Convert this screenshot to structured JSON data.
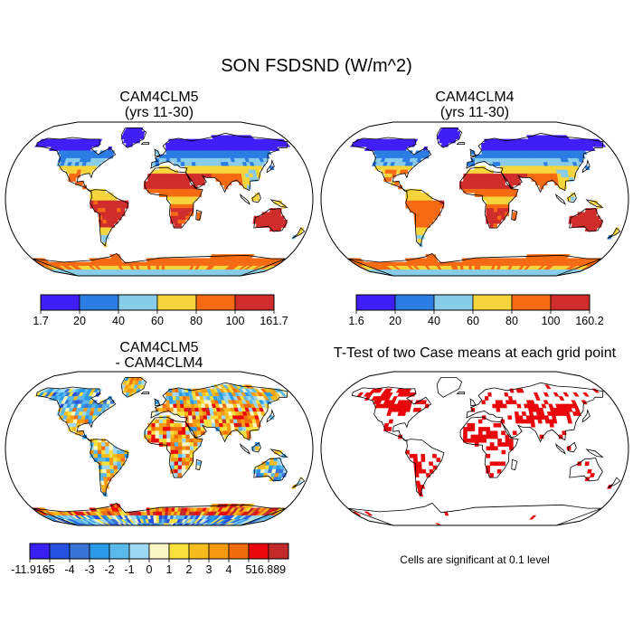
{
  "figure": {
    "title": "SON FSDSND (W/m^2)",
    "footnote": "Cells are significant at 0.1 level"
  },
  "panels": [
    {
      "id": "p1",
      "title_lines": [
        "CAM4CLM5",
        "(yrs 11-30)"
      ],
      "colors": [
        "#3f1ef7",
        "#2b7de3",
        "#87cce8",
        "#f5d53b",
        "#f56a12",
        "#d12c2c"
      ],
      "tick_labels": [
        "1.7",
        "20",
        "40",
        "60",
        "80",
        "100",
        "161.7"
      ]
    },
    {
      "id": "p2",
      "title_lines": [
        "CAM4CLM4",
        "(yrs 11-30)"
      ],
      "colors": [
        "#3f1ef7",
        "#2b7de3",
        "#87cce8",
        "#f5d53b",
        "#f56a12",
        "#d12c2c"
      ],
      "tick_labels": [
        "1.6",
        "20",
        "40",
        "60",
        "80",
        "100",
        "160.2"
      ]
    },
    {
      "id": "p3",
      "title_lines": [
        "CAM4CLM5",
        "- CAM4CLM4"
      ],
      "colors": [
        "#3a20ef",
        "#2550e0",
        "#3a74d6",
        "#2a9ae8",
        "#5ab8ea",
        "#9fd8f2",
        "#fbf7c4",
        "#f8e03e",
        "#f4bc1d",
        "#f59a10",
        "#f06b0e",
        "#e8070b",
        "#c22a2a"
      ],
      "tick_labels": [
        "-11.916",
        "-5",
        "-4",
        "-3",
        "-2",
        "-1",
        "0",
        "1",
        "2",
        "3",
        "4",
        "5",
        "16.889"
      ]
    },
    {
      "id": "p4",
      "title_lines": [
        "T-Test of two Case means at each grid point"
      ],
      "significant_color": "#e8060a"
    }
  ],
  "colors": {
    "map_outline": "#000000",
    "coast": "#000000"
  }
}
